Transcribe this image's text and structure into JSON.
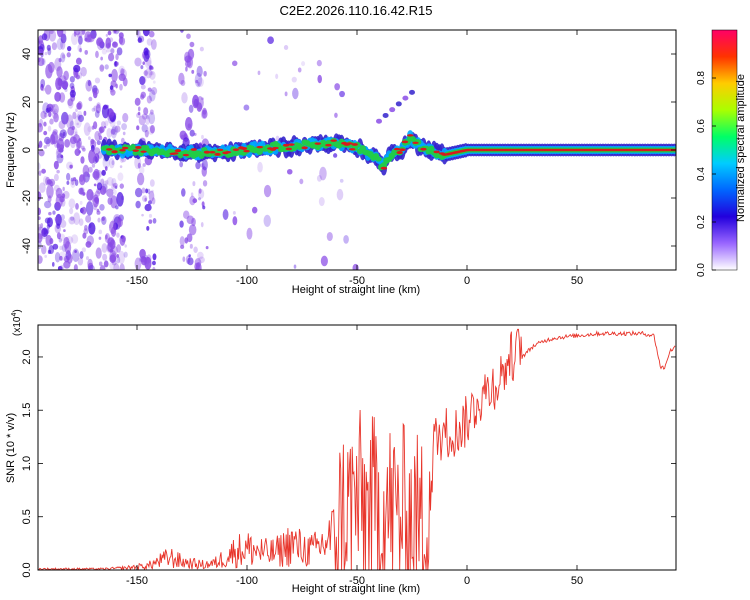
{
  "figure_title": "C2E2.2026.110.16.42.R15",
  "colors": {
    "snr_line": "#e8352b",
    "axis": "#000000",
    "spec_band_core": "#d81b1b",
    "spec_band_mid": "#22cc44",
    "spec_band_edge": "#3322cc",
    "scatter": "#8a4ce6"
  },
  "chart_data": [
    {
      "type": "heatmap",
      "title": "",
      "xlabel": "Height of straight line (km)",
      "ylabel": "Frequency (Hz)",
      "xlim": [
        -195,
        95
      ],
      "ylim": [
        -50,
        50
      ],
      "xticks": [
        -150,
        -100,
        -50,
        0,
        50
      ],
      "xtick_labels": [
        "-150",
        "-100",
        "-50",
        "0",
        "50"
      ],
      "yticks": [
        -40,
        -20,
        0,
        20,
        40
      ],
      "ytick_labels": [
        "-40",
        "-20",
        "0",
        "20",
        "40"
      ],
      "colorbar": {
        "label": "Normalized spectral amplitude",
        "range": [
          0,
          1
        ],
        "ticks": [
          0.0,
          0.2,
          0.4,
          0.6,
          0.8
        ],
        "tick_labels": [
          "0.0",
          "0.2",
          "0.4",
          "0.6",
          "0.8"
        ],
        "colormap": [
          "#ffffff",
          "#9966ff",
          "#2200dd",
          "#0066ff",
          "#00ccff",
          "#00ff66",
          "#aaff00",
          "#ffcc00",
          "#ff3300",
          "#ff0066"
        ]
      },
      "band_center_hz": {
        "x": [
          -165,
          -150,
          -130,
          -110,
          -90,
          -75,
          -60,
          -50,
          -42,
          -38,
          -35,
          -30,
          -26,
          -22,
          -18,
          -10,
          0,
          10,
          20,
          40,
          60,
          95
        ],
        "y": [
          0,
          0,
          -1,
          -1,
          1,
          2,
          3,
          1,
          -3,
          -7,
          -2,
          0,
          5,
          2,
          0,
          -2,
          0,
          0,
          0,
          0,
          0,
          0
        ]
      },
      "features": [
        {
          "label": "ascending streak",
          "x_range": [
            -40,
            -25
          ],
          "y_range": [
            12,
            24
          ]
        }
      ]
    },
    {
      "type": "line",
      "title": "",
      "xlabel": "Height of straight line (km)",
      "ylabel": "SNR (10 * v/v)",
      "y_multiplier_label": "(x10",
      "y_multiplier_exp": "4",
      "xlim": [
        -195,
        95
      ],
      "ylim": [
        0,
        2.3
      ],
      "xticks": [
        -150,
        -100,
        -50,
        0,
        50
      ],
      "xtick_labels": [
        "-150",
        "-100",
        "-50",
        "0",
        "50"
      ],
      "yticks": [
        0.0,
        0.5,
        1.0,
        1.5,
        2.0
      ],
      "ytick_labels": [
        "0.0",
        "0.5",
        "1.0",
        "1.5",
        "2.0"
      ],
      "series": [
        {
          "name": "SNR",
          "x": [
            -195,
            -180,
            -165,
            -155,
            -145,
            -140,
            -135,
            -130,
            -125,
            -120,
            -115,
            -110,
            -105,
            -100,
            -95,
            -90,
            -85,
            -80,
            -75,
            -70,
            -65,
            -60,
            -55,
            -50,
            -45,
            -40,
            -35,
            -30,
            -25,
            -20,
            -15,
            -10,
            -5,
            0,
            5,
            10,
            15,
            20,
            25,
            30,
            35,
            40,
            50,
            60,
            70,
            80,
            85,
            88,
            90,
            92,
            95
          ],
          "y": [
            0.01,
            0.01,
            0.01,
            0.02,
            0.04,
            0.08,
            0.12,
            0.08,
            0.06,
            0.05,
            0.06,
            0.12,
            0.18,
            0.2,
            0.18,
            0.15,
            0.18,
            0.25,
            0.2,
            0.18,
            0.25,
            0.35,
            0.55,
            0.65,
            0.55,
            0.6,
            0.55,
            0.5,
            0.45,
            0.4,
            1.1,
            1.2,
            1.2,
            1.3,
            1.5,
            1.6,
            1.7,
            1.9,
            2.0,
            2.1,
            2.15,
            2.18,
            2.2,
            2.22,
            2.22,
            2.22,
            2.2,
            1.9,
            1.9,
            2.05,
            2.1
          ]
        }
      ]
    }
  ]
}
